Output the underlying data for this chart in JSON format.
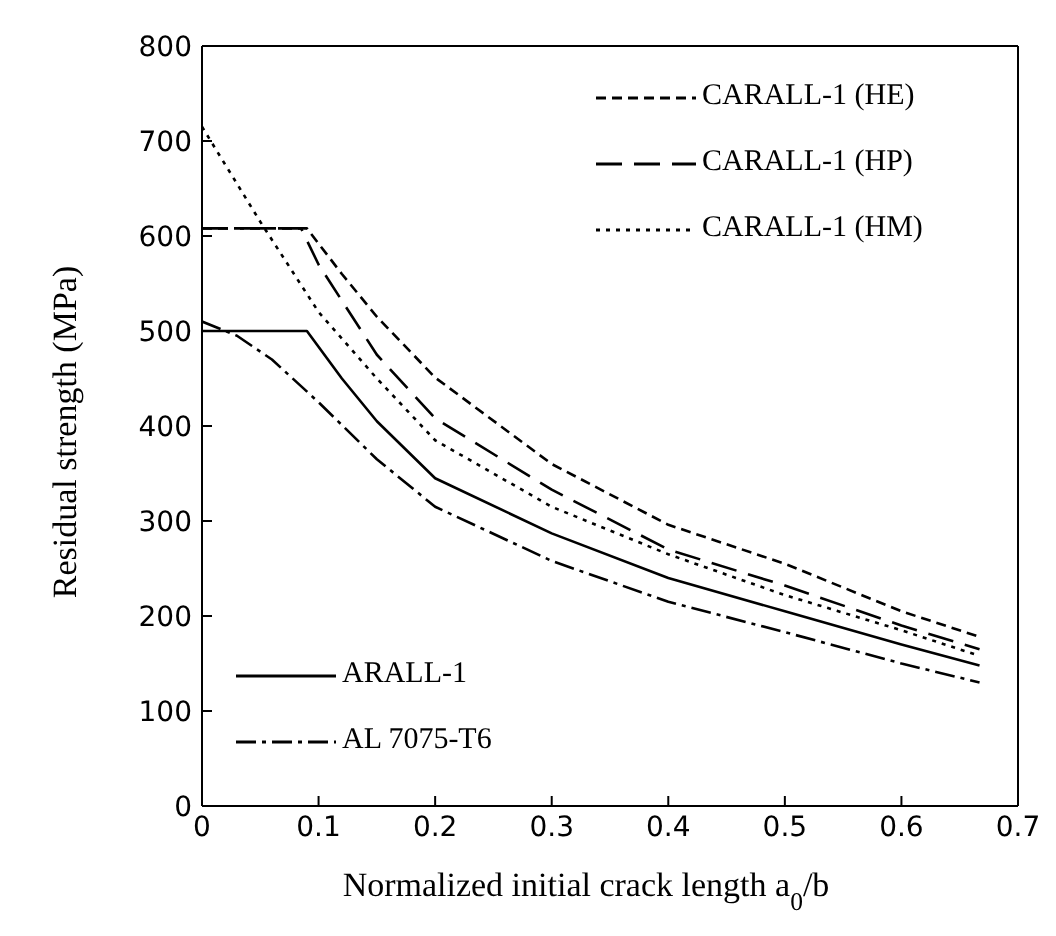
{
  "chart_data": {
    "type": "line",
    "xlabel": "Normalized initial crack length a$_{0}$/b",
    "ylabel": "Residual strength (MPa)",
    "xlim": [
      0,
      0.7
    ],
    "xticks": [
      0,
      0.1,
      0.2,
      0.3,
      0.4,
      0.5,
      0.6,
      0.7
    ],
    "ylim": [
      0,
      800
    ],
    "yticks": [
      0,
      100,
      200,
      300,
      400,
      500,
      600,
      700,
      800
    ],
    "grid": false,
    "legend": "top right",
    "marker": "none",
    "series": [
      {
        "name": "CARALL-1 (HE)",
        "color": "#000000",
        "line_style": "dashed",
        "x": [
          0,
          0.09,
          0.12,
          0.15,
          0.2,
          0.3,
          0.4,
          0.5,
          0.6,
          0.667
        ],
        "values": [
          608,
          608,
          560,
          515,
          451,
          360,
          296,
          255,
          205,
          178
        ]
      },
      {
        "name": "CARALL-1 (HP)",
        "color": "#000000",
        "line_style": "longdash",
        "x": [
          0,
          0.085,
          0.1,
          0.15,
          0.2,
          0.3,
          0.4,
          0.5,
          0.6,
          0.667
        ],
        "values": [
          608,
          608,
          570,
          475,
          408,
          333,
          270,
          232,
          190,
          165
        ]
      },
      {
        "name": "CARALL-1 (HM)",
        "color": "#000000",
        "line_style": "dotted",
        "x": [
          0,
          0.05,
          0.1,
          0.15,
          0.2,
          0.3,
          0.4,
          0.5,
          0.6,
          0.667
        ],
        "values": [
          715,
          615,
          520,
          450,
          385,
          315,
          265,
          222,
          185,
          158
        ]
      },
      {
        "name": "ARALL-1",
        "color": "#000000",
        "line_style": "solid",
        "x": [
          0,
          0.09,
          0.12,
          0.15,
          0.2,
          0.3,
          0.4,
          0.5,
          0.6,
          0.667
        ],
        "values": [
          500,
          500,
          450,
          405,
          345,
          287,
          240,
          205,
          170,
          148
        ]
      },
      {
        "name": "AL 7075-T6",
        "color": "#000000",
        "line_style": "dashdot",
        "x": [
          0,
          0.03,
          0.06,
          0.1,
          0.15,
          0.2,
          0.3,
          0.4,
          0.5,
          0.6,
          0.667
        ],
        "values": [
          510,
          495,
          470,
          425,
          365,
          315,
          258,
          215,
          183,
          150,
          130
        ]
      }
    ]
  }
}
